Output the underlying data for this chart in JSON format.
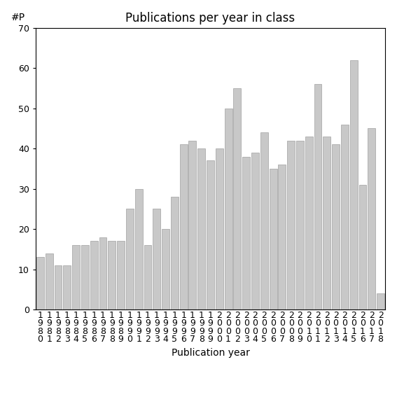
{
  "title": "Publications per year in class",
  "xlabel": "Publication year",
  "ylabel": "#P",
  "years": [
    "1980",
    "1981",
    "1982",
    "1983",
    "1984",
    "1985",
    "1986",
    "1987",
    "1988",
    "1989",
    "1990",
    "1991",
    "1992",
    "1993",
    "1994",
    "1995",
    "1996",
    "1997",
    "1998",
    "1999",
    "2000",
    "2001",
    "2002",
    "2003",
    "2004",
    "2005",
    "2006",
    "2007",
    "2008",
    "2009",
    "2010",
    "2011",
    "2012",
    "2013",
    "2014",
    "2015",
    "2016",
    "2017",
    "2018"
  ],
  "values": [
    13,
    14,
    11,
    11,
    16,
    16,
    17,
    18,
    17,
    17,
    25,
    30,
    16,
    25,
    20,
    28,
    41,
    42,
    40,
    37,
    40,
    50,
    55,
    38,
    39,
    44,
    35,
    36,
    42,
    42,
    43,
    56,
    43,
    41,
    46,
    62,
    31,
    45,
    4
  ],
  "bar_color": "#c8c8c8",
  "bar_edge_color": "#a0a0a0",
  "ylim": [
    0,
    70
  ],
  "yticks": [
    0,
    10,
    20,
    30,
    40,
    50,
    60,
    70
  ],
  "bg_color": "#ffffff",
  "title_fontsize": 12,
  "label_fontsize": 10,
  "tick_fontsize": 9
}
